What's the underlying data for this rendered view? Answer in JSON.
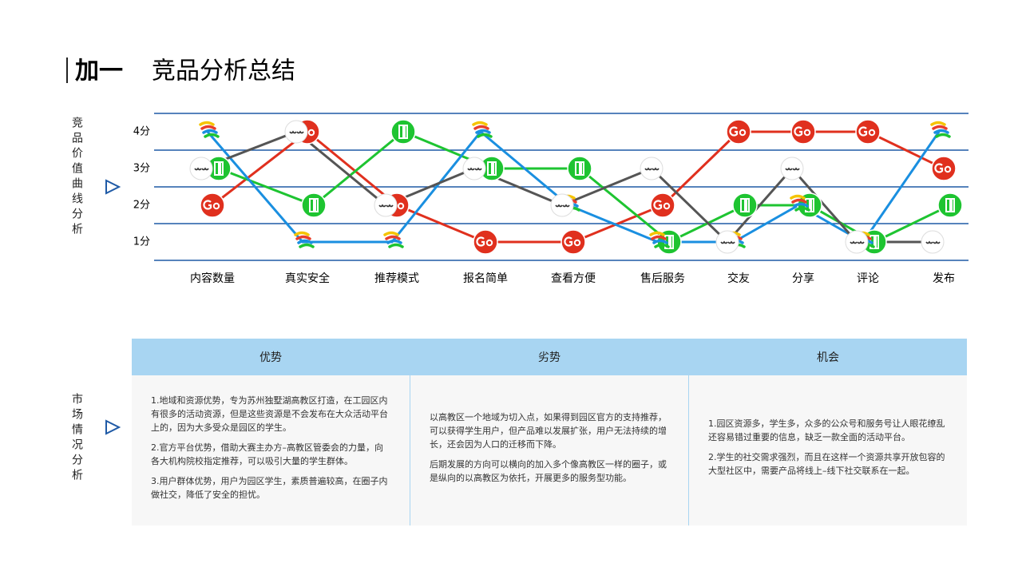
{
  "header": {
    "brand": "加一",
    "title": "竞品分析总结"
  },
  "chart_data": {
    "type": "line",
    "side_label": "竞品价值曲线分析",
    "categories": [
      "内容数量",
      "真实安全",
      "推荐模式",
      "报名简单",
      "查看方便",
      "售后服务",
      "交友",
      "分享",
      "评论",
      "发布"
    ],
    "series": [
      {
        "color": "#e0301e",
        "values": [
          2,
          4,
          2,
          1,
          1,
          2,
          4,
          4,
          4,
          3
        ]
      },
      {
        "color": "#1ec431",
        "values": [
          3,
          2,
          4,
          3,
          3,
          1,
          2,
          2,
          1,
          2
        ]
      },
      {
        "color": "#1a8fe0",
        "values": [
          4,
          1,
          1,
          4,
          2,
          1,
          1,
          2,
          1,
          4
        ]
      },
      {
        "color": "#555555",
        "values": [
          3,
          4,
          2,
          3,
          2,
          3,
          1,
          3,
          1,
          1
        ]
      }
    ],
    "ylim": [
      0.5,
      4.5
    ],
    "yticks": [
      {
        "value": 1,
        "label": "1分"
      },
      {
        "value": 2,
        "label": "2分"
      },
      {
        "value": 3,
        "label": "3分"
      },
      {
        "value": 4,
        "label": "4分"
      }
    ],
    "grid": true,
    "grid_color": "#1f5aa6"
  },
  "market": {
    "side_label": "市场情况分析",
    "headers": [
      "优势",
      "劣势",
      "机会"
    ],
    "columns": [
      [
        "1.地域和资源优势，专为苏州独墅湖高教区打造，在工园区内有很多的活动资源，但是这些资源是不会发布在大众活动平台上的，因为大多受众是园区的学生。",
        "2.官方平台优势，借助大赛主办方–高教区管委会的力量，向各大机构院校指定推荐，可以吸引大量的学生群体。",
        "3.用户群体优势，用户为园区学生，素质普遍较高，在圈子内做社交，降低了安全的担忧。"
      ],
      [
        "以高教区一个地域为切入点，如果得到园区官方的支持推荐，可以获得学生用户，但产品难以发展扩张，用户无法持续的增长，还会因为人口的迁移而下降。",
        "后期发展的方向可以横向的加入多个像高教区一样的圈子，或是纵向的以高教区为依托，开展更多的服务型功能。"
      ],
      [
        "1.园区资源多，学生多，众多的公众号和服务号让人眼花缭乱还容易错过重要的信息，缺乏一款全面的活动平台。",
        "2.学生的社交需求强烈，而且在这样一个资源共享开放包容的大型社区中，需要产品将线上–线下社交联系在一起。"
      ]
    ]
  }
}
